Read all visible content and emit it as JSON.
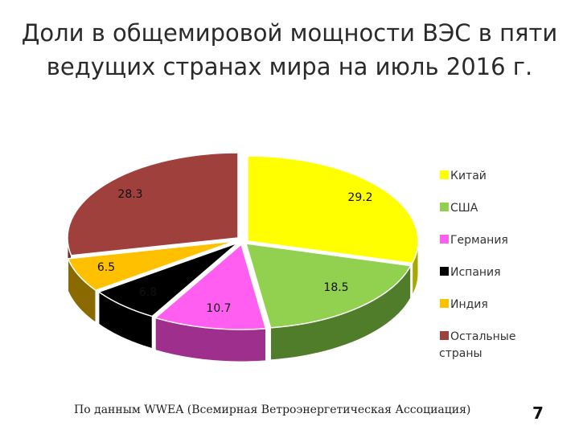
{
  "title": {
    "line1": "Доли в общемировой мощности ВЭС в пяти",
    "line2": "ведущих странах мира на июль 2016 г."
  },
  "chart_data": {
    "type": "pie",
    "title": "Доли в общемировой мощности ВЭС в пяти ведущих странах мира на июль 2016 г.",
    "categories": [
      "Китай",
      "США",
      "Германия",
      "Испания",
      "Индия",
      "Остальные страны"
    ],
    "values": [
      29.2,
      18.5,
      10.7,
      6.8,
      6.5,
      28.3
    ],
    "value_labels": [
      "29.2",
      "18.5",
      "10.7",
      "6.8",
      "6.5",
      "28.3"
    ],
    "colors": [
      "#ffff00",
      "#92d050",
      "#ff5ef0",
      "#000000",
      "#ffc000",
      "#a0403c"
    ],
    "legend_position": "right"
  },
  "source": "По данным WWEA (Всемирная Ветроэнергетическая Ассоциация)",
  "page_number": "7"
}
